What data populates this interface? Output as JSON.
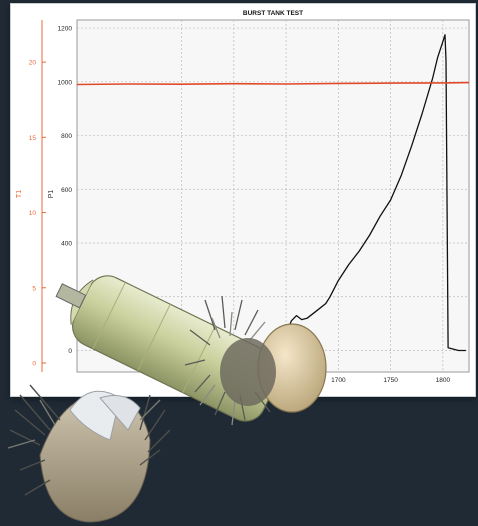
{
  "chart_data": {
    "type": "line",
    "title": "BURST TANK TEST",
    "ylabel": "P1",
    "y2label": "T1",
    "xlabel": "",
    "xlim": [
      1450,
      1825
    ],
    "ylim": [
      -80,
      1230
    ],
    "y2lim": [
      -0.6,
      22.8
    ],
    "x_ticks": [
      "1700",
      "1750",
      "1800"
    ],
    "y_ticks": [
      "0",
      "200",
      "400",
      "600",
      "800",
      "1000",
      "1200"
    ],
    "y2_ticks": [
      "0",
      "5",
      "10",
      "15",
      "20"
    ],
    "grid": true,
    "series": [
      {
        "color": "#111111",
        "x": [
          1640,
          1650,
          1655,
          1660,
          1665,
          1670,
          1680,
          1688,
          1692,
          1700,
          1710,
          1720,
          1730,
          1740,
          1750,
          1760,
          1770,
          1780,
          1790,
          1795,
          1800,
          1802,
          1803,
          1805,
          1815,
          1822
        ],
        "y": [
          0,
          60,
          110,
          130,
          115,
          120,
          150,
          175,
          200,
          260,
          320,
          370,
          430,
          500,
          560,
          650,
          760,
          880,
          1010,
          1090,
          1150,
          1175,
          1080,
          10,
          0,
          0
        ]
      },
      {
        "color": "#e04a2a",
        "x": [
          1450,
          1500,
          1550,
          1600,
          1650,
          1700,
          1750,
          1800,
          1825
        ],
        "y": [
          990,
          992,
          991,
          993,
          992,
          994,
          995,
          996,
          997
        ]
      }
    ]
  },
  "colors": {
    "background": "#1f2a35",
    "secondary_axis": "#e86a3c",
    "grid": "#bcbcbc"
  }
}
